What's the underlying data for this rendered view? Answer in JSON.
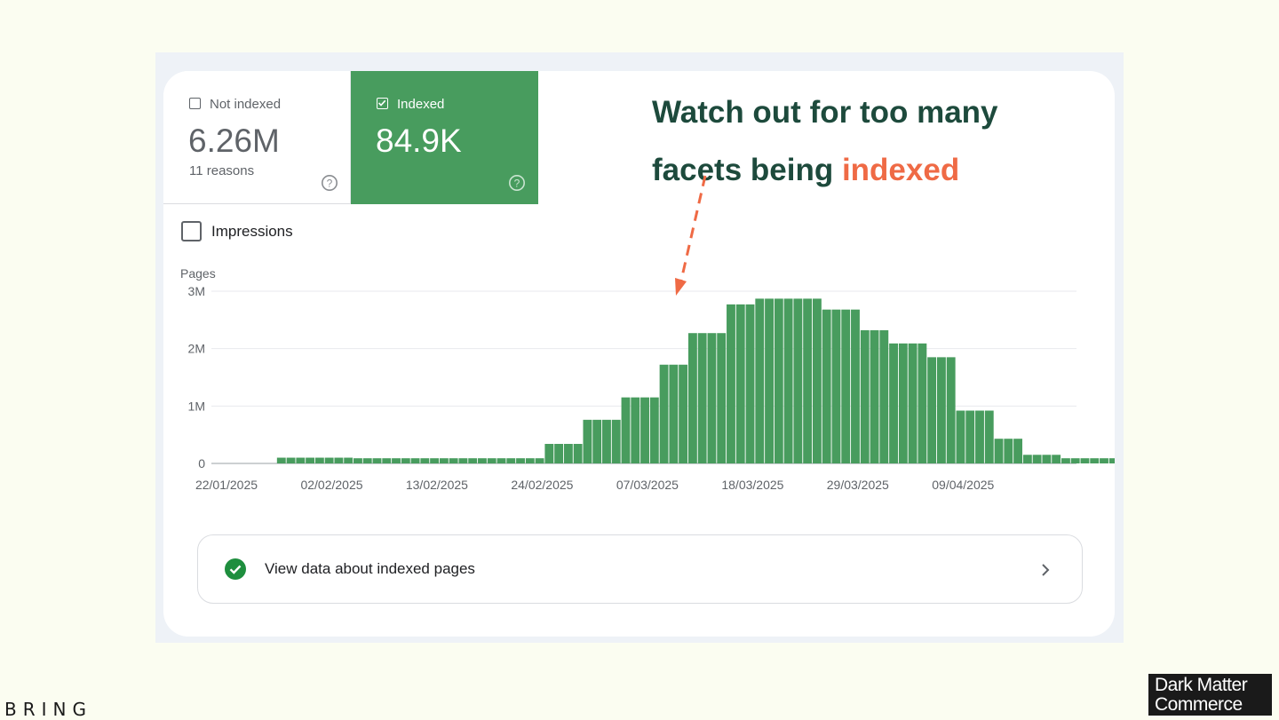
{
  "not_indexed": {
    "label": "Not indexed",
    "value": "6.26M",
    "sub": "11 reasons"
  },
  "indexed": {
    "label": "Indexed",
    "value": "84.9K"
  },
  "impressions": {
    "label": "Impressions"
  },
  "annotation": {
    "line1": "Watch out for too many",
    "line2_prefix": "facets being ",
    "line2_highlight": "indexed"
  },
  "cta": {
    "label": "View data about indexed pages"
  },
  "brand": {
    "left": "BRING",
    "right_line1": "Dark Matter",
    "right_line2": "Commerce"
  },
  "colors": {
    "bar": "#489c5e",
    "highlight": "#ef6a45",
    "heading": "#1d4a3c"
  },
  "icons": [
    "checkbox-icon",
    "check-icon",
    "help-icon",
    "check-circle-icon",
    "chevron-right-icon"
  ],
  "chart_data": {
    "type": "bar",
    "ylabel": "Pages",
    "ylim": [
      0,
      3000000
    ],
    "yticks": [
      "3M",
      "2M",
      "1M",
      "0"
    ],
    "xticks": [
      "22/01/2025",
      "02/02/2025",
      "13/02/2025",
      "24/02/2025",
      "07/03/2025",
      "18/03/2025",
      "29/03/2025",
      "09/04/2025"
    ],
    "start": "2025-01-22",
    "values": [
      0,
      0,
      0,
      0,
      0,
      100000,
      100000,
      100000,
      100000,
      100000,
      100000,
      100000,
      100000,
      90000,
      90000,
      90000,
      90000,
      90000,
      90000,
      90000,
      90000,
      90000,
      90000,
      90000,
      90000,
      90000,
      90000,
      90000,
      90000,
      90000,
      90000,
      90000,
      90000,
      340000,
      340000,
      340000,
      340000,
      760000,
      760000,
      760000,
      760000,
      1150000,
      1150000,
      1150000,
      1150000,
      1720000,
      1720000,
      1720000,
      2270000,
      2270000,
      2270000,
      2270000,
      2770000,
      2770000,
      2770000,
      2870000,
      2870000,
      2870000,
      2870000,
      2870000,
      2870000,
      2870000,
      2680000,
      2680000,
      2680000,
      2680000,
      2320000,
      2320000,
      2320000,
      2090000,
      2090000,
      2090000,
      2090000,
      1850000,
      1850000,
      1850000,
      920000,
      920000,
      920000,
      920000,
      430000,
      430000,
      430000,
      150000,
      150000,
      150000,
      150000,
      90000,
      90000,
      90000,
      90000,
      90000,
      90000,
      90000
    ]
  }
}
